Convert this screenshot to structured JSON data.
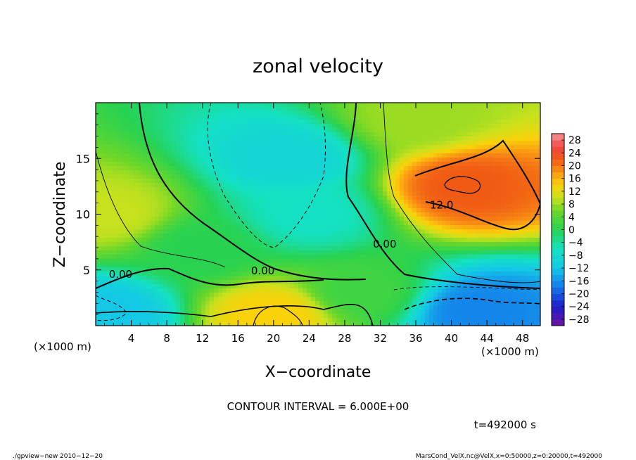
{
  "chart_data": {
    "type": "heatmap",
    "title": "zonal velocity",
    "xlabel": "X−coordinate",
    "ylabel": "Z−coordinate",
    "x_unit_left": "(×1000 m)",
    "x_unit_right": "(×1000 m)",
    "xlim": [
      0,
      50
    ],
    "ylim": [
      0,
      20
    ],
    "x_ticks": [
      4,
      8,
      12,
      16,
      20,
      24,
      28,
      32,
      36,
      40,
      44,
      48
    ],
    "x_tick_labels": [
      "4",
      "8",
      "12",
      "16",
      "20",
      "24",
      "28",
      "32",
      "36",
      "40",
      "44",
      "48"
    ],
    "y_ticks": [
      5,
      10,
      15
    ],
    "y_tick_labels": [
      "5",
      "10",
      "15"
    ],
    "colorbar": {
      "levels": [
        -30,
        -28,
        -26,
        -24,
        -22,
        -20,
        -18,
        -16,
        -14,
        -12,
        -10,
        -8,
        -6,
        -4,
        -2,
        0,
        2,
        4,
        6,
        8,
        10,
        12,
        14,
        16,
        18,
        20,
        22,
        24,
        26,
        28,
        30
      ],
      "tick_labels": [
        "−28",
        "−24",
        "−20",
        "−16",
        "−12",
        "−8",
        "−4",
        "0",
        "4",
        "8",
        "12",
        "16",
        "20",
        "24",
        "28"
      ]
    },
    "contour_labels": [
      {
        "text": "0.00",
        "x": 2.8,
        "y": 4.3
      },
      {
        "text": "0.00",
        "x": 18.8,
        "y": 4.6
      },
      {
        "text": "0.00",
        "x": 32.5,
        "y": 7.0
      },
      {
        "text": "12.0",
        "x": 38.9,
        "y": 10.5
      }
    ],
    "contour_interval": "CONTOUR INTERVAL = 6.000E+00",
    "time_label": "t=492000 s",
    "features": [
      {
        "x": 41.5,
        "z": 12.5,
        "value": 22
      },
      {
        "x": 36.0,
        "z": 18.5,
        "value": 8
      },
      {
        "x": 22.0,
        "z": 15.0,
        "value": -9
      },
      {
        "x": 24.0,
        "z": 10.0,
        "value": -6
      },
      {
        "x": 20.0,
        "z": 1.0,
        "value": 14
      },
      {
        "x": 43.0,
        "z": 1.3,
        "value": -17
      },
      {
        "x": 1.5,
        "z": 10.0,
        "value": 10
      },
      {
        "x": 1.0,
        "z": 1.0,
        "value": -12
      },
      {
        "x": 12.0,
        "z": 7.0,
        "value": 0
      },
      {
        "x": 30.0,
        "z": 3.0,
        "value": 2
      }
    ]
  },
  "footer": {
    "left": "./gpview−new  2010−12−20",
    "right": "MarsCond_VelX.nc@VelX,x=0:50000,z=0:20000,t=492000"
  },
  "colors": {
    "background": "#ffffff",
    "axis": "#000000"
  }
}
